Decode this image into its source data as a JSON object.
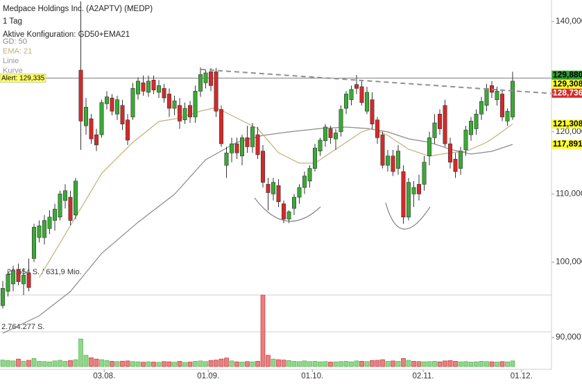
{
  "chart_data": {
    "type": "candlestick",
    "title": "Medpace Holdings Inc. (A2APTV) (MEDP)",
    "interval": "1 Tag",
    "config": "Aktive Konfiguration: GD50+EMA21",
    "drawing_labels": [
      "Linie",
      "Kurve"
    ],
    "log_scale": true,
    "grid": false,
    "ylim": [
      86660,
      144280
    ],
    "yticks": [
      {
        "value": 90000,
        "label": "90,000"
      },
      {
        "value": 100000,
        "label": "100,000"
      },
      {
        "value": 110000,
        "label": "110,000"
      },
      {
        "value": 120000,
        "label": "120,000"
      },
      {
        "value": 140000,
        "label": "140,000"
      }
    ],
    "xticks": [
      {
        "value": 19.5,
        "label": "03.08."
      },
      {
        "value": 39.5,
        "label": "01.09."
      },
      {
        "value": 59.5,
        "label": "01.10."
      },
      {
        "value": 80.8,
        "label": "02.11."
      },
      {
        "value": 99.7,
        "label": "01.12."
      }
    ],
    "up_color": "#3aaa35",
    "down_color": "#d42a2a",
    "open": [
      94100,
      96000,
      97000,
      99000,
      97000,
      98500,
      100500,
      103500,
      103500,
      104800,
      106000,
      106500,
      109000,
      109500,
      106800,
      130800,
      121000,
      122200,
      119500,
      119500,
      124800,
      125800,
      123000,
      124500,
      122000,
      122500,
      126500,
      128500,
      126800,
      129000,
      126800,
      127500,
      126500,
      124000,
      124500,
      122000,
      124500,
      122500,
      127000,
      128500,
      130500,
      130500,
      123800,
      114500,
      116500,
      118000,
      116000,
      119000,
      117500,
      119500,
      116800,
      111500,
      110000,
      111300,
      108500,
      106200,
      107800,
      109500,
      111000,
      112000,
      114000,
      116800,
      118500,
      120500,
      118800,
      120000,
      124000,
      125500,
      128200,
      127800,
      123500,
      125500,
      122000,
      119500,
      114500,
      116000,
      114000,
      113500,
      106500,
      110000,
      111500,
      111500,
      116000,
      119000,
      123000,
      124500,
      118000,
      115500,
      114000,
      117000,
      119500,
      120500,
      123000,
      124500,
      128000,
      125500,
      126500,
      121800,
      122500
    ],
    "high": [
      97400,
      98800,
      99500,
      99800,
      99200,
      100500,
      105500,
      106000,
      106800,
      107500,
      108500,
      110500,
      111500,
      110500,
      112500,
      144000,
      125800,
      123000,
      120500,
      125500,
      127000,
      126500,
      126200,
      125500,
      123000,
      128500,
      129500,
      129800,
      129800,
      129800,
      129000,
      128300,
      127500,
      126200,
      125800,
      125000,
      125300,
      128000,
      131300,
      131000,
      131200,
      131200,
      124500,
      117500,
      119000,
      119000,
      119500,
      121000,
      121500,
      120800,
      117800,
      112500,
      112500,
      112300,
      109000,
      107500,
      110000,
      111500,
      113500,
      114500,
      118000,
      119000,
      121300,
      121000,
      120500,
      124500,
      127000,
      128000,
      129900,
      128800,
      127800,
      126800,
      122500,
      120000,
      117000,
      117000,
      117800,
      114500,
      112500,
      112000,
      113000,
      116000,
      120000,
      123000,
      123800,
      125500,
      119000,
      116500,
      117500,
      121000,
      122500,
      123800,
      126000,
      128300,
      128800,
      127800,
      127300,
      124000,
      130500
    ],
    "low": [
      93700,
      95300,
      96000,
      96800,
      95500,
      96000,
      100000,
      102800,
      102500,
      104000,
      104500,
      106000,
      107800,
      105300,
      106200,
      117000,
      119500,
      118000,
      116800,
      119000,
      123800,
      122800,
      122000,
      120300,
      117800,
      122000,
      125500,
      126200,
      126000,
      126500,
      125800,
      125000,
      122500,
      122800,
      120500,
      121300,
      121500,
      121500,
      126000,
      127500,
      127000,
      122500,
      117500,
      112500,
      115000,
      115500,
      114500,
      116500,
      116500,
      115500,
      111000,
      107500,
      109000,
      108000,
      105600,
      105600,
      106800,
      108500,
      110000,
      111000,
      113500,
      116000,
      117500,
      118000,
      117000,
      119200,
      123000,
      124500,
      126500,
      124500,
      123000,
      120500,
      118000,
      114000,
      113500,
      112800,
      113000,
      105500,
      106000,
      108000,
      109000,
      110500,
      114500,
      118000,
      119500,
      117500,
      114000,
      112500,
      113000,
      116000,
      118500,
      119500,
      122000,
      123500,
      125800,
      124500,
      121800,
      121000,
      122000
    ],
    "close": [
      96400,
      98300,
      98800,
      97300,
      98200,
      96500,
      105000,
      105200,
      106000,
      106500,
      107700,
      110000,
      110500,
      106000,
      112000,
      121800,
      124200,
      118800,
      117800,
      125000,
      126000,
      123500,
      125500,
      121300,
      118600,
      127500,
      128800,
      127000,
      128800,
      127200,
      128000,
      125800,
      124000,
      125300,
      121800,
      124000,
      122500,
      127000,
      130000,
      130300,
      128000,
      123500,
      118000,
      116500,
      118000,
      116500,
      119000,
      117500,
      120800,
      116200,
      111800,
      110200,
      111800,
      108800,
      106200,
      107300,
      109500,
      111000,
      112800,
      114000,
      117300,
      118600,
      120800,
      119000,
      119800,
      123800,
      126500,
      127300,
      127500,
      125000,
      126800,
      121300,
      119000,
      114500,
      116000,
      113500,
      116800,
      106500,
      111800,
      111000,
      110000,
      115000,
      119000,
      121500,
      120500,
      118000,
      115000,
      113500,
      116800,
      120300,
      121800,
      123000,
      125200,
      127500,
      126800,
      127000,
      122500,
      123500,
      128800
    ],
    "lines": [
      {
        "name": "GD: 50",
        "color": "#8a8a8a",
        "x": [
          0,
          7,
          13,
          19,
          26,
          33,
          39,
          45,
          50,
          55,
          61,
          66,
          70,
          74,
          78,
          82,
          86,
          90,
          94,
          98
        ],
        "values": [
          90540,
          92760,
          95970,
          101230,
          105740,
          109940,
          115400,
          118240,
          119390,
          119970,
          120550,
          120790,
          120550,
          119970,
          118810,
          118240,
          117100,
          116310,
          116750,
          117891
        ]
      },
      {
        "name": "EMA: 21",
        "color": "#c2b07a",
        "x": [
          7,
          15,
          19,
          25,
          30,
          34,
          38,
          41,
          45,
          49,
          53,
          57,
          60,
          63,
          66,
          69,
          71,
          74,
          78,
          82,
          86,
          89,
          93,
          95,
          98
        ],
        "values": [
          97840,
          107810,
          113190,
          118240,
          121730,
          122320,
          123520,
          124120,
          122320,
          120550,
          116530,
          114840,
          114840,
          116530,
          118240,
          119970,
          120550,
          119390,
          117100,
          115980,
          116530,
          116750,
          118240,
          119390,
          121308
        ]
      }
    ],
    "volume": {
      "values": [
        520000,
        480000,
        450000,
        600000,
        430000,
        500000,
        650000,
        420000,
        400000,
        380000,
        450000,
        500000,
        420000,
        480000,
        550000,
        2200000,
        900000,
        700000,
        600000,
        550000,
        480000,
        420000,
        400000,
        430000,
        450000,
        400000,
        380000,
        350000,
        380000,
        360000,
        340000,
        400000,
        380000,
        350000,
        420000,
        330000,
        360000,
        420000,
        450000,
        400000,
        480000,
        520000,
        600000,
        680000,
        450000,
        380000,
        360000,
        400000,
        380000,
        420000,
        5690000,
        900000,
        600000,
        550000,
        520000,
        480000,
        420000,
        400000,
        450000,
        400000,
        420000,
        380000,
        400000,
        360000,
        380000,
        400000,
        420000,
        380000,
        450000,
        420000,
        400000,
        480000,
        500000,
        550000,
        420000,
        450000,
        420000,
        650000,
        500000,
        420000,
        400000,
        380000,
        400000,
        420000,
        380000,
        450000,
        480000,
        420000,
        380000,
        400000,
        360000,
        380000,
        420000,
        400000,
        380000,
        360000,
        400000,
        380000,
        450000
      ],
      "lim": [
        0,
        5690000
      ],
      "ticks": [
        {
          "value": 2764277,
          "label": "2.764.277 S."
        }
      ],
      "header": "28.554 S. / 631,9 Mio."
    },
    "alert": {
      "value": 129335,
      "label": "Alert: 129,335"
    },
    "price_labels": [
      {
        "value": 129880,
        "label": "129,880",
        "color": "#2e9e2e",
        "text_color": "#000000"
      },
      {
        "value": 129308,
        "label": "129,308",
        "color": "#ffff33",
        "text_color": "#000000"
      },
      {
        "value": 128736,
        "label": "128,736",
        "color": "#d42a2a",
        "text_color": "#ffffff"
      },
      {
        "value": 121308,
        "label": "121,308",
        "color": "#ffff33",
        "text_color": "#000000"
      },
      {
        "value": 117891,
        "label": "117,891",
        "color": "#ffff33",
        "text_color": "#000000"
      }
    ]
  }
}
